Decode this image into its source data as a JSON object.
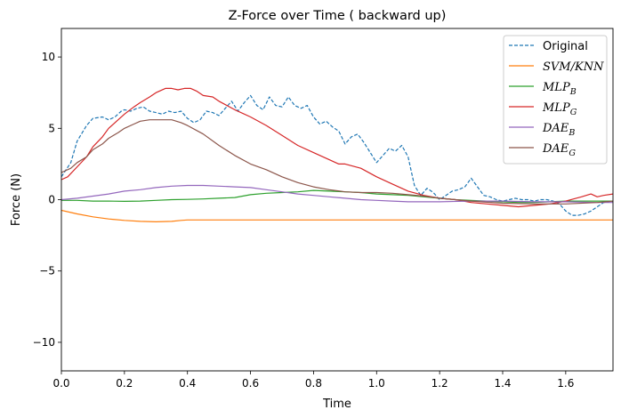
{
  "chart_data": {
    "type": "line",
    "title": "Z-Force over Time ( backward up)",
    "xlabel": "Time",
    "ylabel": "Force (N)",
    "xlim": [
      0.0,
      1.75
    ],
    "ylim": [
      -12,
      12
    ],
    "xticks": [
      0.0,
      0.2,
      0.4,
      0.6,
      0.8,
      1.0,
      1.2,
      1.4,
      1.6
    ],
    "xtick_labels": [
      "0.0",
      "0.2",
      "0.4",
      "0.6",
      "0.8",
      "1.0",
      "1.2",
      "1.4",
      "1.6"
    ],
    "yticks": [
      -10,
      -5,
      0,
      5,
      10
    ],
    "ytick_labels": [
      "−10",
      "−5",
      "0",
      "5",
      "10"
    ],
    "grid": false,
    "legend_position": "top-right",
    "series": [
      {
        "name": "Original",
        "legend_main": "Original",
        "legend_sub": "",
        "color": "#1f77b4",
        "style": "dashed",
        "x": [
          0.0,
          0.03,
          0.05,
          0.08,
          0.1,
          0.13,
          0.15,
          0.17,
          0.19,
          0.2,
          0.22,
          0.24,
          0.26,
          0.28,
          0.3,
          0.32,
          0.34,
          0.36,
          0.38,
          0.4,
          0.42,
          0.44,
          0.46,
          0.48,
          0.5,
          0.52,
          0.54,
          0.56,
          0.58,
          0.6,
          0.62,
          0.64,
          0.66,
          0.68,
          0.7,
          0.72,
          0.74,
          0.76,
          0.78,
          0.8,
          0.82,
          0.84,
          0.86,
          0.88,
          0.9,
          0.92,
          0.94,
          0.96,
          0.98,
          1.0,
          1.02,
          1.04,
          1.06,
          1.08,
          1.1,
          1.12,
          1.14,
          1.16,
          1.18,
          1.2,
          1.22,
          1.24,
          1.26,
          1.28,
          1.3,
          1.32,
          1.34,
          1.36,
          1.38,
          1.4,
          1.42,
          1.44,
          1.46,
          1.48,
          1.5,
          1.52,
          1.54,
          1.56,
          1.58,
          1.6,
          1.62,
          1.64,
          1.66,
          1.68,
          1.7,
          1.72,
          1.75
        ],
        "y": [
          1.6,
          2.6,
          4.1,
          5.2,
          5.7,
          5.8,
          5.6,
          5.8,
          6.2,
          6.3,
          6.2,
          6.4,
          6.5,
          6.2,
          6.1,
          6.0,
          6.2,
          6.1,
          6.2,
          5.7,
          5.4,
          5.6,
          6.2,
          6.1,
          5.9,
          6.4,
          6.9,
          6.2,
          6.8,
          7.3,
          6.6,
          6.3,
          7.2,
          6.6,
          6.5,
          7.2,
          6.6,
          6.4,
          6.6,
          5.8,
          5.3,
          5.5,
          5.1,
          4.8,
          3.9,
          4.4,
          4.6,
          4.0,
          3.3,
          2.6,
          3.1,
          3.6,
          3.4,
          3.8,
          3.0,
          1.0,
          0.3,
          0.8,
          0.5,
          0.0,
          0.3,
          0.6,
          0.7,
          0.9,
          1.5,
          0.9,
          0.3,
          0.2,
          0.0,
          -0.1,
          0.0,
          0.1,
          0.0,
          0.0,
          -0.1,
          0.0,
          0.0,
          -0.1,
          -0.3,
          -0.8,
          -1.1,
          -1.1,
          -1.0,
          -0.8,
          -0.5,
          -0.2,
          -0.1
        ]
      },
      {
        "name": "SVM/KNN",
        "legend_main": "SVM/KNN",
        "legend_sub": "",
        "color": "#ff7f0e",
        "style": "solid",
        "x": [
          0.0,
          0.05,
          0.1,
          0.15,
          0.2,
          0.25,
          0.3,
          0.35,
          0.38,
          0.4,
          0.5,
          0.6,
          0.8,
          1.0,
          1.2,
          1.4,
          1.6,
          1.75
        ],
        "y": [
          -0.75,
          -1.0,
          -1.2,
          -1.35,
          -1.45,
          -1.52,
          -1.55,
          -1.52,
          -1.45,
          -1.42,
          -1.42,
          -1.42,
          -1.42,
          -1.42,
          -1.42,
          -1.42,
          -1.42,
          -1.42
        ]
      },
      {
        "name": "MLP_B",
        "legend_main": "MLP",
        "legend_sub": "B",
        "color": "#2ca02c",
        "style": "solid",
        "x": [
          0.0,
          0.05,
          0.1,
          0.15,
          0.2,
          0.25,
          0.3,
          0.35,
          0.4,
          0.45,
          0.5,
          0.55,
          0.6,
          0.65,
          0.7,
          0.75,
          0.8,
          0.85,
          0.9,
          0.95,
          1.0,
          1.05,
          1.1,
          1.15,
          1.2,
          1.25,
          1.3,
          1.35,
          1.4,
          1.45,
          1.5,
          1.55,
          1.6,
          1.65,
          1.7,
          1.75
        ],
        "y": [
          -0.05,
          -0.05,
          -0.1,
          -0.1,
          -0.12,
          -0.1,
          -0.05,
          0.0,
          0.02,
          0.05,
          0.1,
          0.15,
          0.35,
          0.45,
          0.5,
          0.55,
          0.65,
          0.6,
          0.55,
          0.5,
          0.4,
          0.35,
          0.3,
          0.2,
          0.1,
          0.0,
          -0.05,
          -0.1,
          -0.15,
          -0.2,
          -0.2,
          -0.15,
          -0.1,
          -0.1,
          -0.1,
          -0.1
        ]
      },
      {
        "name": "MLP_G",
        "legend_main": "MLP",
        "legend_sub": "G",
        "color": "#d62728",
        "style": "solid",
        "x": [
          0.0,
          0.02,
          0.05,
          0.08,
          0.1,
          0.13,
          0.15,
          0.18,
          0.2,
          0.23,
          0.25,
          0.28,
          0.3,
          0.33,
          0.35,
          0.37,
          0.39,
          0.41,
          0.43,
          0.45,
          0.48,
          0.5,
          0.55,
          0.6,
          0.65,
          0.7,
          0.75,
          0.8,
          0.85,
          0.88,
          0.9,
          0.95,
          1.0,
          1.05,
          1.1,
          1.15,
          1.2,
          1.25,
          1.3,
          1.35,
          1.4,
          1.45,
          1.5,
          1.55,
          1.6,
          1.65,
          1.68,
          1.7,
          1.72,
          1.75
        ],
        "y": [
          1.4,
          1.6,
          2.3,
          3.0,
          3.7,
          4.4,
          5.0,
          5.6,
          6.0,
          6.5,
          6.8,
          7.2,
          7.5,
          7.8,
          7.8,
          7.7,
          7.8,
          7.8,
          7.6,
          7.3,
          7.2,
          6.9,
          6.3,
          5.8,
          5.2,
          4.5,
          3.8,
          3.3,
          2.8,
          2.5,
          2.5,
          2.2,
          1.6,
          1.1,
          0.6,
          0.3,
          0.1,
          0.0,
          -0.2,
          -0.3,
          -0.4,
          -0.5,
          -0.4,
          -0.3,
          -0.1,
          0.2,
          0.4,
          0.2,
          0.3,
          0.4
        ]
      },
      {
        "name": "DAE_B",
        "legend_main": "DAE",
        "legend_sub": "B",
        "color": "#9467bd",
        "style": "solid",
        "x": [
          0.0,
          0.05,
          0.1,
          0.15,
          0.2,
          0.25,
          0.3,
          0.35,
          0.4,
          0.45,
          0.5,
          0.55,
          0.6,
          0.65,
          0.7,
          0.75,
          0.8,
          0.85,
          0.9,
          0.95,
          1.0,
          1.05,
          1.1,
          1.15,
          1.2,
          1.3,
          1.4,
          1.5,
          1.6,
          1.7,
          1.75
        ],
        "y": [
          0.0,
          0.1,
          0.25,
          0.4,
          0.6,
          0.7,
          0.85,
          0.95,
          1.0,
          1.0,
          0.95,
          0.9,
          0.85,
          0.7,
          0.55,
          0.4,
          0.3,
          0.2,
          0.1,
          0.0,
          -0.05,
          -0.1,
          -0.15,
          -0.15,
          -0.15,
          -0.1,
          -0.1,
          -0.15,
          -0.15,
          -0.2,
          -0.2
        ]
      },
      {
        "name": "DAE_G",
        "legend_main": "DAE",
        "legend_sub": "G",
        "color": "#8c564b",
        "style": "solid",
        "x": [
          0.0,
          0.03,
          0.05,
          0.08,
          0.1,
          0.13,
          0.15,
          0.18,
          0.2,
          0.23,
          0.25,
          0.28,
          0.3,
          0.33,
          0.35,
          0.38,
          0.4,
          0.45,
          0.5,
          0.55,
          0.6,
          0.65,
          0.7,
          0.75,
          0.8,
          0.85,
          0.9,
          0.95,
          1.0,
          1.05,
          1.1,
          1.15,
          1.2,
          1.3,
          1.4,
          1.5,
          1.6,
          1.7,
          1.75
        ],
        "y": [
          1.9,
          2.2,
          2.6,
          3.0,
          3.5,
          3.9,
          4.3,
          4.7,
          5.0,
          5.3,
          5.5,
          5.6,
          5.6,
          5.6,
          5.6,
          5.4,
          5.2,
          4.6,
          3.8,
          3.1,
          2.5,
          2.1,
          1.6,
          1.2,
          0.9,
          0.7,
          0.55,
          0.5,
          0.5,
          0.45,
          0.35,
          0.25,
          0.1,
          -0.1,
          -0.25,
          -0.3,
          -0.3,
          -0.2,
          -0.1
        ]
      }
    ]
  }
}
